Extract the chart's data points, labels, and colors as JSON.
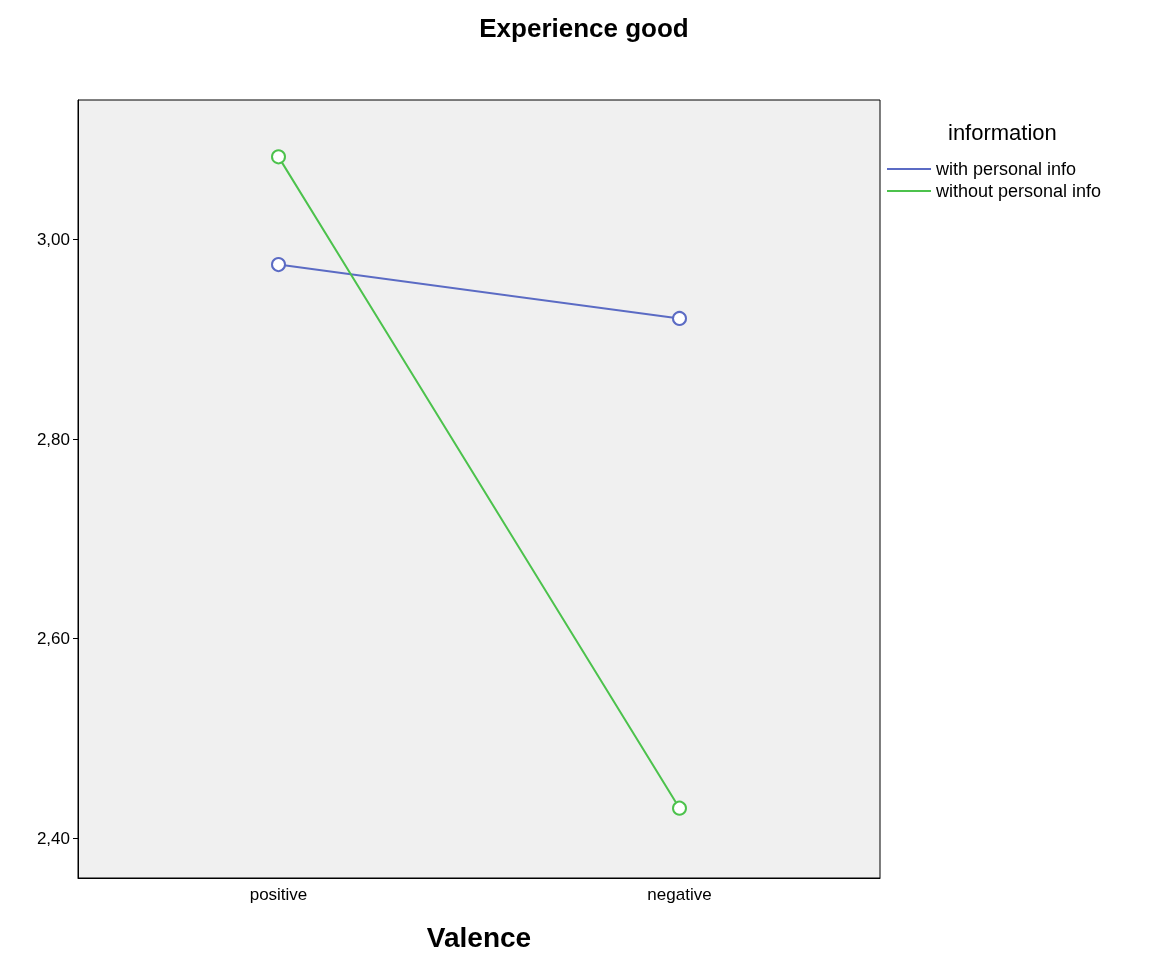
{
  "chart_data": {
    "type": "line",
    "title": "Experience good",
    "xlabel": "Valence",
    "legend_title": "information",
    "categories": [
      "positive",
      "negative"
    ],
    "series": [
      {
        "name": "with personal info",
        "color": "#5b6bc4",
        "values": [
          2.975,
          2.921
        ]
      },
      {
        "name": "without personal info",
        "color": "#4cc24c",
        "values": [
          3.083,
          2.43
        ]
      }
    ],
    "ylim": [
      2.36,
      3.14
    ],
    "yticks": [
      {
        "value": 2.4,
        "label": "2,40"
      },
      {
        "value": 2.6,
        "label": "2,60"
      },
      {
        "value": 2.8,
        "label": "2,80"
      },
      {
        "value": 3.0,
        "label": "3,00"
      }
    ],
    "grid": false,
    "legend": "top right",
    "marker": "circle",
    "line_style": "solid"
  }
}
